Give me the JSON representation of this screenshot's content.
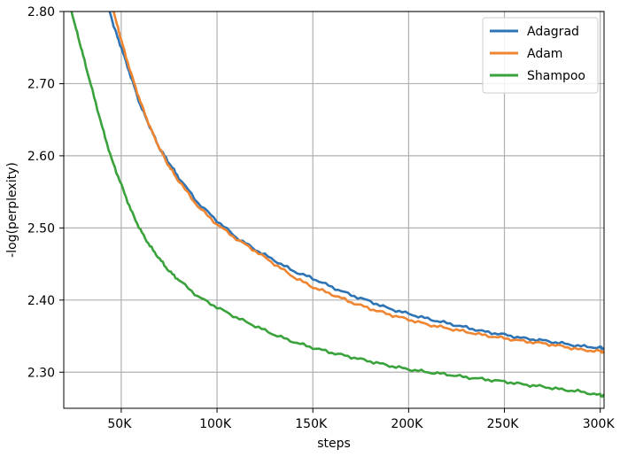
{
  "chart_data": {
    "type": "line",
    "xlabel": "steps",
    "ylabel": "-log(perplexity)",
    "xlim": [
      20000,
      302000
    ],
    "ylim": [
      2.25,
      2.8
    ],
    "grid": true,
    "legend_position": "top-right",
    "x_ticks": [
      50000,
      100000,
      150000,
      200000,
      250000,
      300000
    ],
    "x_tick_labels": [
      "50K",
      "100K",
      "150K",
      "200K",
      "250K",
      "300K"
    ],
    "y_ticks": [
      2.3,
      2.4,
      2.5,
      2.6,
      2.7,
      2.8
    ],
    "y_tick_labels": [
      "2.30",
      "2.40",
      "2.50",
      "2.60",
      "2.70",
      "2.80"
    ],
    "series": [
      {
        "name": "Adagrad",
        "color": "#2e74b5",
        "x": [
          44000,
          46000,
          50000,
          55000,
          60000,
          65000,
          70000,
          75000,
          80000,
          90000,
          100000,
          110000,
          120000,
          130000,
          140000,
          150000,
          160000,
          170000,
          180000,
          190000,
          200000,
          210000,
          220000,
          230000,
          240000,
          250000,
          260000,
          270000,
          280000,
          290000,
          300000,
          302000
        ],
        "y": [
          2.8,
          2.78,
          2.75,
          2.71,
          2.67,
          2.64,
          2.61,
          2.59,
          2.57,
          2.535,
          2.51,
          2.487,
          2.47,
          2.455,
          2.44,
          2.43,
          2.418,
          2.407,
          2.398,
          2.388,
          2.381,
          2.374,
          2.368,
          2.362,
          2.356,
          2.352,
          2.347,
          2.344,
          2.34,
          2.336,
          2.334,
          2.333
        ]
      },
      {
        "name": "Adam",
        "color": "#ef8531",
        "x": [
          46000,
          48000,
          50000,
          55000,
          60000,
          65000,
          70000,
          75000,
          80000,
          90000,
          100000,
          110000,
          120000,
          130000,
          140000,
          150000,
          160000,
          170000,
          180000,
          190000,
          200000,
          210000,
          220000,
          230000,
          240000,
          250000,
          260000,
          270000,
          280000,
          290000,
          300000,
          302000
        ],
        "y": [
          2.8,
          2.78,
          2.76,
          2.715,
          2.675,
          2.64,
          2.61,
          2.585,
          2.565,
          2.53,
          2.505,
          2.485,
          2.468,
          2.45,
          2.432,
          2.418,
          2.408,
          2.397,
          2.388,
          2.38,
          2.373,
          2.366,
          2.361,
          2.356,
          2.351,
          2.347,
          2.343,
          2.34,
          2.336,
          2.331,
          2.329,
          2.328
        ]
      },
      {
        "name": "Shampoo",
        "color": "#3aa23a",
        "x": [
          24000,
          27000,
          30000,
          35000,
          40000,
          45000,
          50000,
          55000,
          60000,
          65000,
          70000,
          75000,
          80000,
          90000,
          100000,
          110000,
          120000,
          130000,
          140000,
          150000,
          160000,
          170000,
          180000,
          190000,
          200000,
          210000,
          220000,
          230000,
          240000,
          250000,
          260000,
          270000,
          280000,
          290000,
          300000,
          302000
        ],
        "y": [
          2.8,
          2.77,
          2.74,
          2.69,
          2.64,
          2.595,
          2.56,
          2.525,
          2.497,
          2.475,
          2.457,
          2.44,
          2.428,
          2.405,
          2.39,
          2.376,
          2.364,
          2.352,
          2.342,
          2.334,
          2.327,
          2.321,
          2.315,
          2.309,
          2.304,
          2.3,
          2.297,
          2.293,
          2.29,
          2.287,
          2.283,
          2.28,
          2.276,
          2.273,
          2.268,
          2.267
        ]
      }
    ]
  }
}
